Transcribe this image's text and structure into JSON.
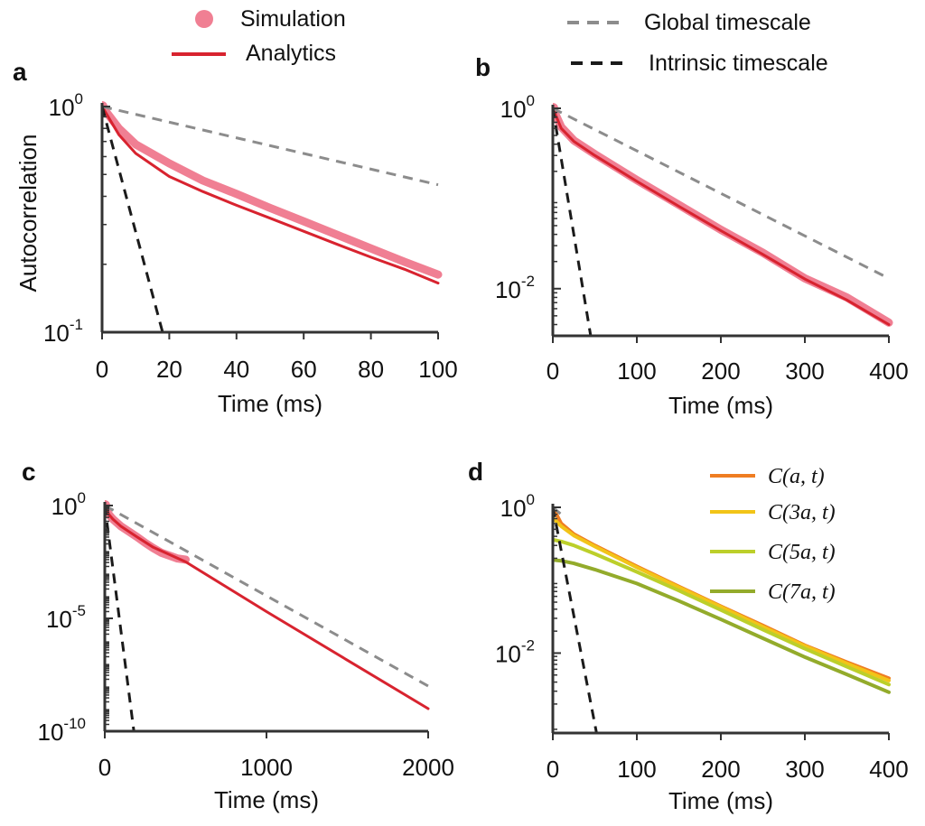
{
  "legend_top": {
    "simulation": "Simulation",
    "analytics": "Analytics",
    "global": "Global timescale",
    "intrinsic": "Intrinsic timescale"
  },
  "colors": {
    "simulation": "#f07f93",
    "analytics": "#d8232f",
    "global": "#8c8c8c",
    "intrinsic": "#1a1a1a",
    "series_d": [
      "#ef7d22",
      "#f2c418",
      "#bccf2a",
      "#93ab2b"
    ]
  },
  "chart_data": [
    {
      "panel": "a",
      "type": "line",
      "xlabel": "Time (ms)",
      "ylabel": "Autocorrelation",
      "yscale": "log",
      "xlim": [
        0,
        100
      ],
      "ylim": [
        0.1,
        1
      ],
      "xticks": [
        0,
        20,
        40,
        60,
        80,
        100
      ],
      "xtick_labels": [
        "0",
        "20",
        "40",
        "60",
        "80",
        "100"
      ],
      "yticks": [
        0.1,
        1
      ],
      "ytick_labels": [
        {
          "base": "10",
          "exp": "-1"
        },
        {
          "base": "10",
          "exp": "0"
        }
      ],
      "series": [
        {
          "role": "simulation",
          "x": [
            0,
            5,
            10,
            20,
            30,
            40,
            50,
            60,
            70,
            80,
            90,
            100
          ],
          "y": [
            1.0,
            0.8,
            0.68,
            0.56,
            0.47,
            0.41,
            0.355,
            0.31,
            0.27,
            0.235,
            0.205,
            0.18
          ]
        },
        {
          "role": "analytics",
          "x": [
            0,
            5,
            10,
            20,
            30,
            40,
            50,
            60,
            70,
            80,
            90,
            100
          ],
          "y": [
            1.0,
            0.75,
            0.62,
            0.49,
            0.42,
            0.365,
            0.32,
            0.28,
            0.245,
            0.215,
            0.19,
            0.165
          ]
        },
        {
          "role": "global",
          "x": [
            0,
            100
          ],
          "y": [
            1.0,
            0.45
          ]
        },
        {
          "role": "intrinsic",
          "x": [
            0,
            18
          ],
          "y": [
            1.0,
            0.1
          ]
        }
      ]
    },
    {
      "panel": "b",
      "type": "line",
      "xlabel": "Time (ms)",
      "ylabel": "",
      "yscale": "log",
      "xlim": [
        0,
        400
      ],
      "ylim": [
        0.003,
        1
      ],
      "xticks": [
        0,
        100,
        200,
        300,
        400
      ],
      "xtick_labels": [
        "0",
        "100",
        "200",
        "300",
        "400"
      ],
      "yticks": [
        0.01,
        1
      ],
      "ytick_labels": [
        {
          "base": "10",
          "exp": "-2"
        },
        {
          "base": "10",
          "exp": "0"
        }
      ],
      "series": [
        {
          "role": "simulation",
          "x": [
            0,
            10,
            25,
            50,
            100,
            150,
            200,
            250,
            300,
            350,
            400
          ],
          "y": [
            1.0,
            0.62,
            0.44,
            0.31,
            0.16,
            0.085,
            0.045,
            0.025,
            0.013,
            0.008,
            0.0042
          ]
        },
        {
          "role": "analytics",
          "x": [
            0,
            10,
            25,
            50,
            100,
            150,
            200,
            250,
            300,
            350,
            400
          ],
          "y": [
            1.0,
            0.6,
            0.43,
            0.3,
            0.155,
            0.082,
            0.044,
            0.024,
            0.0128,
            0.0075,
            0.004
          ]
        },
        {
          "role": "global",
          "x": [
            0,
            400
          ],
          "y": [
            1.0,
            0.013
          ]
        },
        {
          "role": "intrinsic",
          "x": [
            0,
            45
          ],
          "y": [
            1.0,
            0.003
          ]
        }
      ]
    },
    {
      "panel": "c",
      "type": "line",
      "xlabel": "Time (ms)",
      "ylabel": "",
      "yscale": "log",
      "xlim": [
        0,
        2000
      ],
      "ylim": [
        1e-10,
        1
      ],
      "xticks": [
        0,
        1000,
        2000
      ],
      "xtick_labels": [
        "0",
        "1000",
        "2000"
      ],
      "yticks": [
        1e-10,
        1e-05,
        1
      ],
      "ytick_labels": [
        {
          "base": "10",
          "exp": "-10"
        },
        {
          "base": "10",
          "exp": "-5"
        },
        {
          "base": "10",
          "exp": "0"
        }
      ],
      "series": [
        {
          "role": "simulation",
          "x": [
            0,
            25,
            50,
            100,
            150,
            200,
            250,
            300,
            350,
            400,
            450,
            500
          ],
          "y": [
            1.0,
            0.4,
            0.25,
            0.12,
            0.07,
            0.04,
            0.022,
            0.013,
            0.008,
            0.006,
            0.0045,
            0.004
          ]
        },
        {
          "role": "analytics",
          "x": [
            0,
            25,
            50,
            100,
            200,
            300,
            500,
            1000,
            1500,
            2000
          ],
          "y": [
            1.0,
            0.4,
            0.25,
            0.12,
            0.04,
            0.014,
            0.0032,
            2e-05,
            1.4e-07,
            1e-09
          ]
        },
        {
          "role": "global",
          "x": [
            0,
            2000
          ],
          "y": [
            1.0,
            1e-08
          ]
        },
        {
          "role": "intrinsic",
          "x": [
            0,
            180
          ],
          "y": [
            1.0,
            1e-10
          ]
        }
      ]
    },
    {
      "panel": "d",
      "type": "line",
      "xlabel": "Time (ms)",
      "ylabel": "",
      "yscale": "log",
      "xlim": [
        0,
        400
      ],
      "ylim": [
        0.0008,
        1
      ],
      "xticks": [
        0,
        100,
        200,
        300,
        400
      ],
      "xtick_labels": [
        "0",
        "100",
        "200",
        "300",
        "400"
      ],
      "yticks": [
        0.01,
        1
      ],
      "ytick_labels": [
        {
          "base": "10",
          "exp": "-2"
        },
        {
          "base": "10",
          "exp": "0"
        }
      ],
      "series": [
        {
          "role": "curve",
          "name": "C(a, t)",
          "x": [
            0,
            10,
            25,
            50,
            100,
            150,
            200,
            250,
            300,
            350,
            400
          ],
          "y": [
            1.0,
            0.6,
            0.43,
            0.3,
            0.155,
            0.082,
            0.044,
            0.024,
            0.0128,
            0.0075,
            0.0045
          ]
        },
        {
          "role": "curve",
          "name": "C(3a, t)",
          "x": [
            0,
            10,
            25,
            50,
            100,
            150,
            200,
            250,
            300,
            350,
            400
          ],
          "y": [
            0.72,
            0.55,
            0.41,
            0.29,
            0.15,
            0.08,
            0.043,
            0.023,
            0.0125,
            0.0072,
            0.0042
          ]
        },
        {
          "role": "curve",
          "name": "C(5a, t)",
          "x": [
            0,
            10,
            25,
            50,
            100,
            150,
            200,
            250,
            300,
            350,
            400
          ],
          "y": [
            0.36,
            0.34,
            0.3,
            0.23,
            0.13,
            0.072,
            0.039,
            0.021,
            0.0115,
            0.0065,
            0.0037
          ]
        },
        {
          "role": "curve",
          "name": "C(7a, t)",
          "x": [
            0,
            10,
            25,
            50,
            100,
            150,
            200,
            250,
            300,
            350,
            400
          ],
          "y": [
            0.19,
            0.185,
            0.17,
            0.14,
            0.09,
            0.052,
            0.029,
            0.016,
            0.0088,
            0.0051,
            0.0029
          ]
        },
        {
          "role": "global",
          "x": [
            0,
            10
          ],
          "y": [
            1.0,
            0.8
          ]
        },
        {
          "role": "intrinsic",
          "x": [
            0,
            52
          ],
          "y": [
            1.0,
            0.0008
          ]
        }
      ]
    }
  ]
}
